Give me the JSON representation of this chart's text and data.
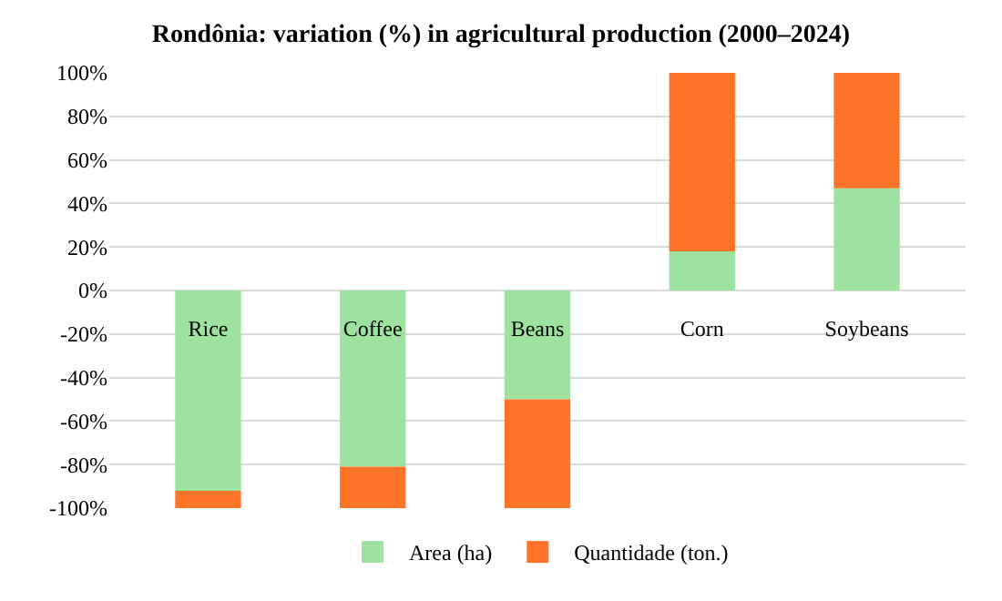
{
  "chart_data": {
    "type": "bar",
    "title": "Rondônia: variation (%) in agricultural production (2000–2024)",
    "categories": [
      "Rice",
      "Coffee",
      "Beans",
      "Corn",
      "Soybeans"
    ],
    "stacked": true,
    "series": [
      {
        "name": "Area (ha)",
        "color": "#9de39f",
        "values": [
          -92,
          -81,
          -50,
          18,
          47
        ]
      },
      {
        "name": "Quantidade (ton.)",
        "color": "#fd7429",
        "values": [
          -8,
          -19,
          -50,
          82,
          53
        ]
      }
    ],
    "ylim": [
      -100,
      100
    ],
    "yticks": [
      {
        "value": -100,
        "label": "-100%"
      },
      {
        "value": -80,
        "label": "-80%"
      },
      {
        "value": -60,
        "label": "-60%"
      },
      {
        "value": -40,
        "label": "-40%"
      },
      {
        "value": -20,
        "label": "-20%"
      },
      {
        "value": 0,
        "label": "0%"
      },
      {
        "value": 20,
        "label": "20%"
      },
      {
        "value": 40,
        "label": "40%"
      },
      {
        "value": 60,
        "label": "60%"
      },
      {
        "value": 80,
        "label": "80%"
      },
      {
        "value": 100,
        "label": "100%"
      }
    ],
    "grid": "y",
    "legend": "bottom"
  }
}
